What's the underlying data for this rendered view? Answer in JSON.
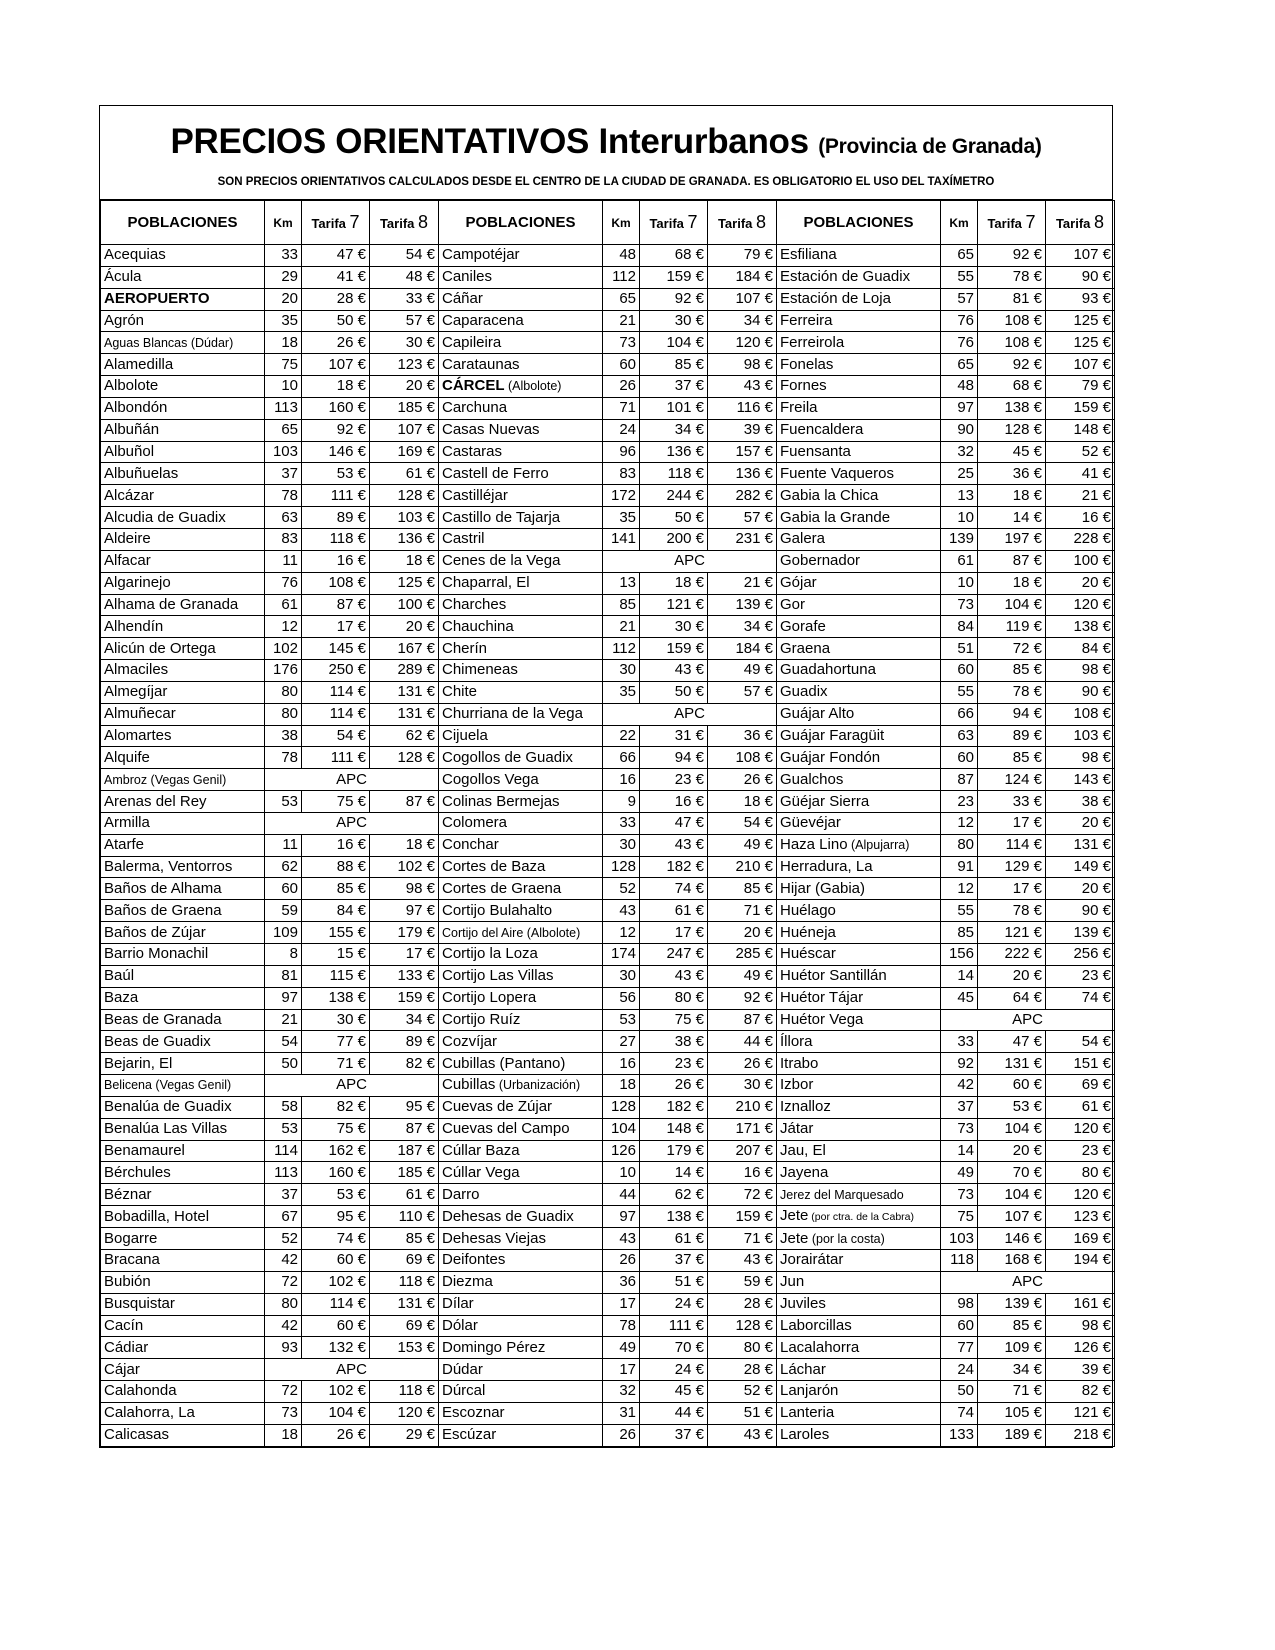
{
  "title": {
    "main": "PRECIOS ORIENTATIVOS Interurbanos",
    "sub": "(Provincia de Granada)"
  },
  "subtitle": "SON PRECIOS ORIENTATIVOS CALCULADOS DESDE EL CENTRO DE LA CIUDAD DE GRANADA.   ES OBLIGATORIO EL USO DEL TAXÍMETRO",
  "headers": {
    "name": "POBLACIONES",
    "km": "Km",
    "t7_word": "Tarifa",
    "t7_num": "7",
    "t8_word": "Tarifa",
    "t8_num": "8"
  },
  "cols": [
    [
      [
        "Acequias",
        "33",
        "47 €",
        "54 €"
      ],
      [
        "Ácula",
        "29",
        "41 €",
        "48 €"
      ],
      [
        {
          "t": "AEROPUERTO",
          "b": 1
        },
        "20",
        "28 €",
        "33 €"
      ],
      [
        "Agrón",
        "35",
        "50 €",
        "57 €"
      ],
      [
        {
          "t": "Aguas Blancas (Dúdar)",
          "s": 1
        },
        "18",
        "26 €",
        "30 €"
      ],
      [
        "Alamedilla",
        "75",
        "107 €",
        "123 €"
      ],
      [
        "Albolote",
        "10",
        "18 €",
        "20 €"
      ],
      [
        "Albondón",
        "113",
        "160 €",
        "185 €"
      ],
      [
        "Albuñán",
        "65",
        "92 €",
        "107 €"
      ],
      [
        "Albuñol",
        "103",
        "146 €",
        "169 €"
      ],
      [
        "Albuñuelas",
        "37",
        "53 €",
        "61 €"
      ],
      [
        "Alcázar",
        "78",
        "111 €",
        "128 €"
      ],
      [
        "Alcudia de Guadix",
        "63",
        "89 €",
        "103 €"
      ],
      [
        "Aldeire",
        "83",
        "118 €",
        "136 €"
      ],
      [
        "Alfacar",
        "11",
        "16 €",
        "18 €"
      ],
      [
        "Algarinejo",
        "76",
        "108 €",
        "125 €"
      ],
      [
        "Alhama de Granada",
        "61",
        "87 €",
        "100 €"
      ],
      [
        "Alhendín",
        "12",
        "17 €",
        "20 €"
      ],
      [
        "Alicún de Ortega",
        "102",
        "145 €",
        "167 €"
      ],
      [
        "Almaciles",
        "176",
        "250 €",
        "289 €"
      ],
      [
        "Almegíjar",
        "80",
        "114 €",
        "131 €"
      ],
      [
        "Almuñecar",
        "80",
        "114 €",
        "131 €"
      ],
      [
        "Alomartes",
        "38",
        "54 €",
        "62 €"
      ],
      [
        "Alquife",
        "78",
        "111 €",
        "128 €"
      ],
      [
        {
          "t": "Ambroz (Vegas Genil)",
          "s": 1
        },
        "APC"
      ],
      [
        "Arenas del Rey",
        "53",
        "75 €",
        "87 €"
      ],
      [
        "Armilla",
        "APC"
      ],
      [
        "Atarfe",
        "11",
        "16 €",
        "18 €"
      ],
      [
        "Balerma, Ventorros",
        "62",
        "88 €",
        "102 €"
      ],
      [
        "Baños de Alhama",
        "60",
        "85 €",
        "98 €"
      ],
      [
        "Baños de Graena",
        "59",
        "84 €",
        "97 €"
      ],
      [
        "Baños de Zújar",
        "109",
        "155 €",
        "179 €"
      ],
      [
        "Barrio Monachil",
        "8",
        "15 €",
        "17 €"
      ],
      [
        "Baúl",
        "81",
        "115 €",
        "133 €"
      ],
      [
        "Baza",
        "97",
        "138 €",
        "159 €"
      ],
      [
        "Beas de Granada",
        "21",
        "30 €",
        "34 €"
      ],
      [
        "Beas de Guadix",
        "54",
        "77 €",
        "89 €"
      ],
      [
        "Bejarin, El",
        "50",
        "71 €",
        "82 €"
      ],
      [
        {
          "t": "Belicena (Vegas Genil)",
          "s": 1
        },
        "APC"
      ],
      [
        "Benalúa de Guadix",
        "58",
        "82 €",
        "95 €"
      ],
      [
        "Benalúa Las Villas",
        "53",
        "75 €",
        "87 €"
      ],
      [
        "Benamaurel",
        "114",
        "162 €",
        "187 €"
      ],
      [
        "Bérchules",
        "113",
        "160 €",
        "185 €"
      ],
      [
        "Béznar",
        "37",
        "53 €",
        "61 €"
      ],
      [
        "Bobadilla, Hotel",
        "67",
        "95 €",
        "110 €"
      ],
      [
        "Bogarre",
        "52",
        "74 €",
        "85 €"
      ],
      [
        "Bracana",
        "42",
        "60 €",
        "69 €"
      ],
      [
        "Bubión",
        "72",
        "102 €",
        "118 €"
      ],
      [
        "Busquistar",
        "80",
        "114 €",
        "131 €"
      ],
      [
        "Cacín",
        "42",
        "60 €",
        "69 €"
      ],
      [
        "Cádiar",
        "93",
        "132 €",
        "153 €"
      ],
      [
        "Cájar",
        "APC"
      ],
      [
        "Calahonda",
        "72",
        "102 €",
        "118 €"
      ],
      [
        "Calahorra, La",
        "73",
        "104 €",
        "120 €"
      ],
      [
        "Calicasas",
        "18",
        "26 €",
        "29 €"
      ]
    ],
    [
      [
        "Campotéjar",
        "48",
        "68 €",
        "79 €"
      ],
      [
        "Caniles",
        "112",
        "159 €",
        "184 €"
      ],
      [
        "Cáñar",
        "65",
        "92 €",
        "107 €"
      ],
      [
        "Caparacena",
        "21",
        "30 €",
        "34 €"
      ],
      [
        "Capileira",
        "73",
        "104 €",
        "120 €"
      ],
      [
        "Carataunas",
        "60",
        "85 €",
        "98 €"
      ],
      [
        {
          "t": "CÁRCEL",
          "b": 1,
          "x": " (Albolote)"
        },
        "26",
        "37 €",
        "43 €"
      ],
      [
        "Carchuna",
        "71",
        "101 €",
        "116 €"
      ],
      [
        "Casas Nuevas",
        "24",
        "34 €",
        "39 €"
      ],
      [
        "Castaras",
        "96",
        "136 €",
        "157 €"
      ],
      [
        "Castell de Ferro",
        "83",
        "118 €",
        "136 €"
      ],
      [
        "Castilléjar",
        "172",
        "244 €",
        "282 €"
      ],
      [
        "Castillo de Tajarja",
        "35",
        "50 €",
        "57 €"
      ],
      [
        "Castril",
        "141",
        "200 €",
        "231 €"
      ],
      [
        "Cenes de la Vega",
        "APC"
      ],
      [
        "Chaparral, El",
        "13",
        "18 €",
        "21 €"
      ],
      [
        "Charches",
        "85",
        "121 €",
        "139 €"
      ],
      [
        "Chauchina",
        "21",
        "30 €",
        "34 €"
      ],
      [
        "Cherín",
        "112",
        "159 €",
        "184 €"
      ],
      [
        "Chimeneas",
        "30",
        "43 €",
        "49 €"
      ],
      [
        "Chite",
        "35",
        "50 €",
        "57 €"
      ],
      [
        "Churriana de la Vega",
        "APC"
      ],
      [
        "Cijuela",
        "22",
        "31 €",
        "36 €"
      ],
      [
        "Cogollos de Guadix",
        "66",
        "94 €",
        "108 €"
      ],
      [
        "Cogollos Vega",
        "16",
        "23 €",
        "26 €"
      ],
      [
        "Colinas Bermejas",
        "9",
        "16 €",
        "18 €"
      ],
      [
        "Colomera",
        "33",
        "47 €",
        "54 €"
      ],
      [
        "Conchar",
        "30",
        "43 €",
        "49 €"
      ],
      [
        "Cortes de Baza",
        "128",
        "182 €",
        "210 €"
      ],
      [
        "Cortes de Graena",
        "52",
        "74 €",
        "85 €"
      ],
      [
        "Cortijo Bulahalto",
        "43",
        "61 €",
        "71 €"
      ],
      [
        {
          "t": "Cortijo del Aire (Albolote)",
          "s": 1
        },
        "12",
        "17 €",
        "20 €"
      ],
      [
        "Cortijo la Loza",
        "174",
        "247 €",
        "285 €"
      ],
      [
        "Cortijo Las Villas",
        "30",
        "43 €",
        "49 €"
      ],
      [
        "Cortijo Lopera",
        "56",
        "80 €",
        "92 €"
      ],
      [
        "Cortijo Ruíz",
        "53",
        "75 €",
        "87 €"
      ],
      [
        "Cozvíjar",
        "27",
        "38 €",
        "44 €"
      ],
      [
        "Cubillas (Pantano)",
        "16",
        "23 €",
        "26 €"
      ],
      [
        {
          "t": "Cubillas",
          "x": " (Urbanización)"
        },
        "18",
        "26 €",
        "30 €"
      ],
      [
        "Cuevas de Zújar",
        "128",
        "182 €",
        "210 €"
      ],
      [
        "Cuevas del Campo",
        "104",
        "148 €",
        "171 €"
      ],
      [
        "Cúllar Baza",
        "126",
        "179 €",
        "207 €"
      ],
      [
        "Cúllar Vega",
        "10",
        "14 €",
        "16 €"
      ],
      [
        "Darro",
        "44",
        "62 €",
        "72 €"
      ],
      [
        "Dehesas de Guadix",
        "97",
        "138 €",
        "159 €"
      ],
      [
        "Dehesas Viejas",
        "43",
        "61 €",
        "71 €"
      ],
      [
        "Deifontes",
        "26",
        "37 €",
        "43 €"
      ],
      [
        "Diezma",
        "36",
        "51 €",
        "59 €"
      ],
      [
        "Dílar",
        "17",
        "24 €",
        "28 €"
      ],
      [
        "Dólar",
        "78",
        "111 €",
        "128 €"
      ],
      [
        "Domingo Pérez",
        "49",
        "70 €",
        "80 €"
      ],
      [
        "Dúdar",
        "17",
        "24 €",
        "28 €"
      ],
      [
        "Dúrcal",
        "32",
        "45 €",
        "52 €"
      ],
      [
        "Escoznar",
        "31",
        "44 €",
        "51 €"
      ],
      [
        "Escúzar",
        "26",
        "37 €",
        "43 €"
      ]
    ],
    [
      [
        "Esfiliana",
        "65",
        "92 €",
        "107 €"
      ],
      [
        "Estación de Guadix",
        "55",
        "78 €",
        "90 €"
      ],
      [
        "Estación de Loja",
        "57",
        "81 €",
        "93 €"
      ],
      [
        "Ferreira",
        "76",
        "108 €",
        "125 €"
      ],
      [
        "Ferreirola",
        "76",
        "108 €",
        "125 €"
      ],
      [
        "Fonelas",
        "65",
        "92 €",
        "107 €"
      ],
      [
        "Fornes",
        "48",
        "68 €",
        "79 €"
      ],
      [
        "Freila",
        "97",
        "138 €",
        "159 €"
      ],
      [
        "Fuencaldera",
        "90",
        "128 €",
        "148 €"
      ],
      [
        "Fuensanta",
        "32",
        "45 €",
        "52 €"
      ],
      [
        "Fuente Vaqueros",
        "25",
        "36 €",
        "41 €"
      ],
      [
        "Gabia la Chica",
        "13",
        "18 €",
        "21 €"
      ],
      [
        "Gabia la Grande",
        "10",
        "14 €",
        "16 €"
      ],
      [
        "Galera",
        "139",
        "197 €",
        "228 €"
      ],
      [
        "Gobernador",
        "61",
        "87 €",
        "100 €"
      ],
      [
        "Gójar",
        "10",
        "18 €",
        "20 €"
      ],
      [
        "Gor",
        "73",
        "104 €",
        "120 €"
      ],
      [
        "Gorafe",
        "84",
        "119 €",
        "138 €"
      ],
      [
        "Graena",
        "51",
        "72 €",
        "84 €"
      ],
      [
        "Guadahortuna",
        "60",
        "85 €",
        "98 €"
      ],
      [
        "Guadix",
        "55",
        "78 €",
        "90 €"
      ],
      [
        "Guájar Alto",
        "66",
        "94 €",
        "108 €"
      ],
      [
        "Guájar Faragüit",
        "63",
        "89 €",
        "103 €"
      ],
      [
        "Guájar Fondón",
        "60",
        "85 €",
        "98 €"
      ],
      [
        "Gualchos",
        "87",
        "124 €",
        "143 €"
      ],
      [
        "Güéjar Sierra",
        "23",
        "33 €",
        "38 €"
      ],
      [
        "Güevéjar",
        "12",
        "17 €",
        "20 €"
      ],
      [
        {
          "t": "Haza Lino",
          "x": " (Alpujarra)"
        },
        "80",
        "114 €",
        "131 €"
      ],
      [
        "Herradura, La",
        "91",
        "129 €",
        "149 €"
      ],
      [
        "Hijar (Gabia)",
        "12",
        "17 €",
        "20 €"
      ],
      [
        "Huélago",
        "55",
        "78 €",
        "90 €"
      ],
      [
        "Huéneja",
        "85",
        "121 €",
        "139 €"
      ],
      [
        "Huéscar",
        "156",
        "222 €",
        "256 €"
      ],
      [
        "Huétor Santillán",
        "14",
        "20 €",
        "23 €"
      ],
      [
        "Huétor Tájar",
        "45",
        "64 €",
        "74 €"
      ],
      [
        "Huétor Vega",
        "APC"
      ],
      [
        "Íllora",
        "33",
        "47 €",
        "54 €"
      ],
      [
        "Itrabo",
        "92",
        "131 €",
        "151 €"
      ],
      [
        "Izbor",
        "42",
        "60 €",
        "69 €"
      ],
      [
        "Iznalloz",
        "37",
        "53 €",
        "61 €"
      ],
      [
        "Játar",
        "73",
        "104 €",
        "120 €"
      ],
      [
        "Jau, El",
        "14",
        "20 €",
        "23 €"
      ],
      [
        "Jayena",
        "49",
        "70 €",
        "80 €"
      ],
      [
        {
          "t": "Jerez del Marquesado",
          "s": 1
        },
        "73",
        "104 €",
        "120 €"
      ],
      [
        {
          "t": "Jete",
          "x": " (por ctra. de la Cabra)",
          "xt": 1
        },
        "75",
        "107 €",
        "123 €"
      ],
      [
        {
          "t": "Jete",
          "x": " (por la costa)"
        },
        "103",
        "146 €",
        "169 €"
      ],
      [
        "Jorairátar",
        "118",
        "168 €",
        "194 €"
      ],
      [
        "Jun",
        "APC"
      ],
      [
        "Juviles",
        "98",
        "139 €",
        "161 €"
      ],
      [
        "Laborcillas",
        "60",
        "85 €",
        "98 €"
      ],
      [
        "Lacalahorra",
        "77",
        "109 €",
        "126 €"
      ],
      [
        "Láchar",
        "24",
        "34 €",
        "39 €"
      ],
      [
        "Lanjarón",
        "50",
        "71 €",
        "82 €"
      ],
      [
        "Lanteria",
        "74",
        "105 €",
        "121 €"
      ],
      [
        "Laroles",
        "133",
        "189 €",
        "218 €"
      ]
    ]
  ]
}
